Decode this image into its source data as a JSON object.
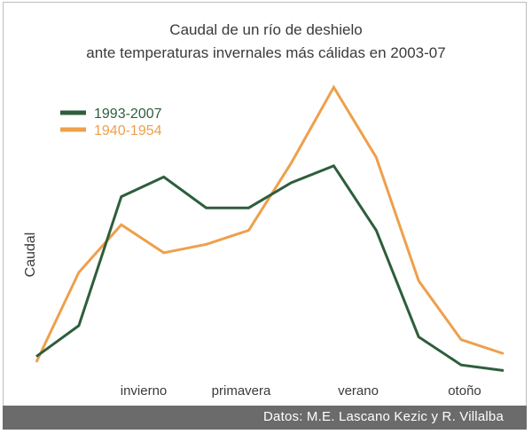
{
  "title": "Caudal de un río de deshielo",
  "subtitle": "ante temperaturas invernales más cálidas en 2003-07",
  "footer": "Datos: M.E. Lascano Kezic y R. Villalba",
  "colors": {
    "series1": "#2e5e3c",
    "series2": "#eea04b",
    "text": "#3a3a3a"
  },
  "chart_data": {
    "type": "line",
    "title": "Caudal de un río de deshielo ante temperaturas invernales más cálidas en 2003-07",
    "ylabel": "Caudal",
    "xlabel": "",
    "x_ticks": [
      "invierno",
      "primavera",
      "verano",
      "otoño"
    ],
    "ylim": [
      0,
      100
    ],
    "grid": false,
    "legend_position": "top-left",
    "x": [
      0,
      1,
      2,
      3,
      4,
      5,
      6,
      7,
      8,
      9,
      10,
      11
    ],
    "series": [
      {
        "name": "1993-2007",
        "color": "#2e5e3c",
        "values": [
          2,
          13,
          59,
          66,
          55,
          55,
          64,
          70,
          47,
          9,
          -1,
          -3
        ]
      },
      {
        "name": "1940-1954",
        "color": "#eea04b",
        "values": [
          0,
          32,
          49,
          39,
          42,
          47,
          71,
          98,
          73,
          29,
          8,
          3
        ]
      }
    ]
  }
}
